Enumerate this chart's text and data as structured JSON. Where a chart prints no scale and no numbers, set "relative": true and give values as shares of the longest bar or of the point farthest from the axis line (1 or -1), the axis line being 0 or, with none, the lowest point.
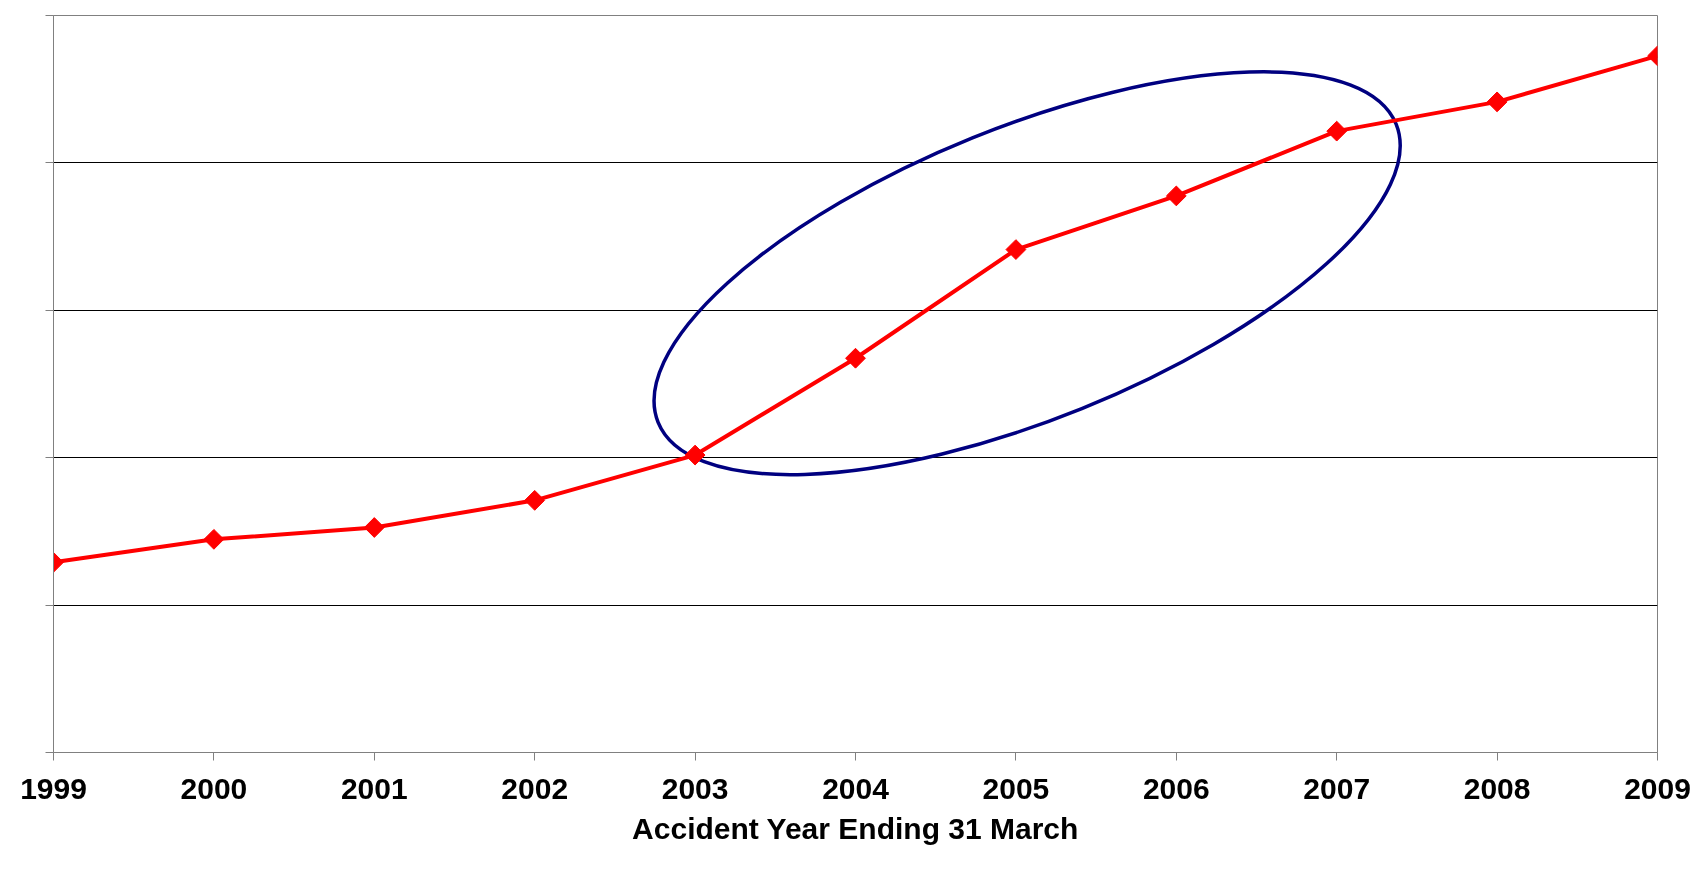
{
  "chart_data": {
    "type": "line",
    "xlabel": "Accident Year Ending 31 March",
    "categories": [
      "1999",
      "2000",
      "2001",
      "2002",
      "2003",
      "2004",
      "2005",
      "2006",
      "2007",
      "2008",
      "2009"
    ],
    "series": [
      {
        "color": "#ff0000",
        "values": [
          0.273,
          0.306,
          0.323,
          0.362,
          0.427,
          0.566,
          0.722,
          0.799,
          0.892,
          0.934,
          1
        ]
      }
    ],
    "relative": true,
    "grid": "y",
    "marker": "diamond",
    "line_style": "solid",
    "tick_labels": "x"
  }
}
